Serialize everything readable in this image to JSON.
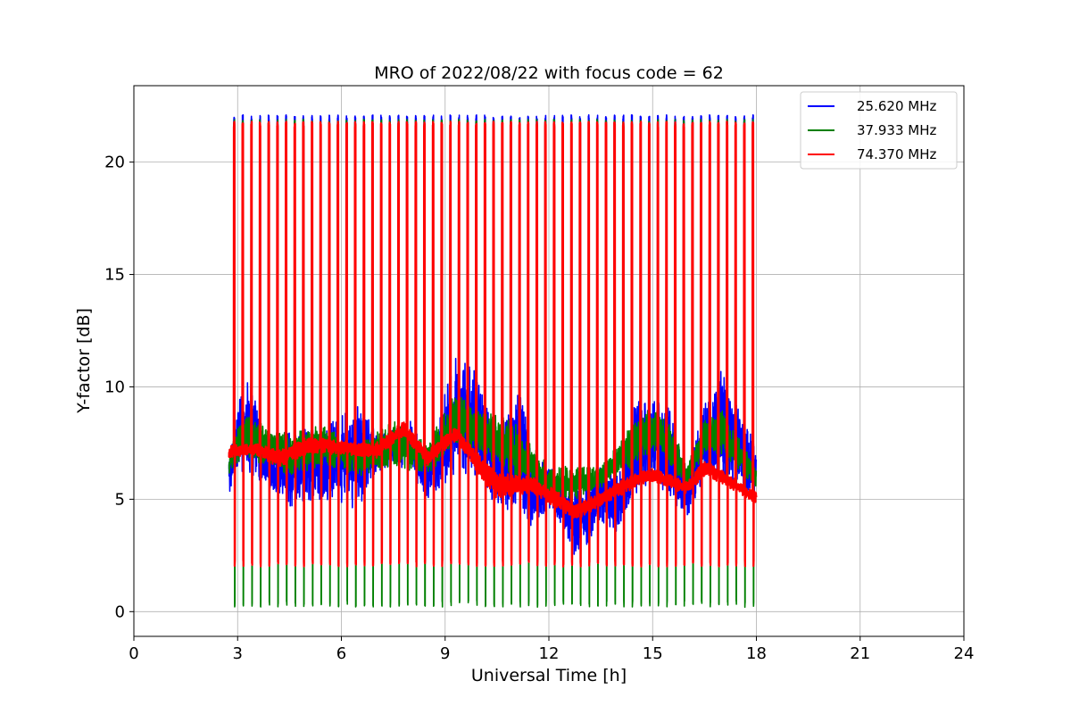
{
  "chart_data": {
    "type": "line",
    "title": "MRO of 2022/08/22 with focus code = 62",
    "xlabel": "Universal Time [h]",
    "ylabel": "Y-factor [dB]",
    "xlim": [
      0,
      24
    ],
    "ylim": [
      -1.1,
      23.4
    ],
    "xticks": [
      0,
      3,
      6,
      9,
      12,
      15,
      18,
      21,
      24
    ],
    "yticks": [
      0,
      5,
      10,
      15,
      20
    ],
    "grid": true,
    "legend_position": "top-right",
    "time_range_h": [
      2.75,
      18.0
    ],
    "calibration_spike_interval_h": 0.25,
    "series": [
      {
        "name": "25.620 MHz",
        "color": "#0000ff",
        "spike_peak": 22.1,
        "envelope_keyframes": [
          {
            "x": 2.75,
            "low": 5.0,
            "high": 7.0
          },
          {
            "x": 3.0,
            "low": 6.0,
            "high": 9.5
          },
          {
            "x": 3.4,
            "low": 5.8,
            "high": 10.6
          },
          {
            "x": 3.8,
            "low": 5.5,
            "high": 7.5
          },
          {
            "x": 4.5,
            "low": 4.6,
            "high": 8.2
          },
          {
            "x": 5.5,
            "low": 5.0,
            "high": 8.2
          },
          {
            "x": 6.5,
            "low": 4.5,
            "high": 9.5
          },
          {
            "x": 7.0,
            "low": 6.2,
            "high": 8.0
          },
          {
            "x": 7.5,
            "low": 6.5,
            "high": 8.2
          },
          {
            "x": 8.0,
            "low": 6.0,
            "high": 8.5
          },
          {
            "x": 8.5,
            "low": 5.0,
            "high": 7.0
          },
          {
            "x": 9.3,
            "low": 6.0,
            "high": 11.7
          },
          {
            "x": 10.0,
            "low": 6.0,
            "high": 10.5
          },
          {
            "x": 10.5,
            "low": 4.5,
            "high": 8.0
          },
          {
            "x": 11.2,
            "low": 4.5,
            "high": 10.0
          },
          {
            "x": 11.5,
            "low": 3.5,
            "high": 7.0
          },
          {
            "x": 12.0,
            "low": 4.5,
            "high": 6.5
          },
          {
            "x": 12.8,
            "low": 2.2,
            "high": 5.5
          },
          {
            "x": 13.5,
            "low": 4.0,
            "high": 6.5
          },
          {
            "x": 14.0,
            "low": 3.5,
            "high": 6.0
          },
          {
            "x": 14.5,
            "low": 5.0,
            "high": 9.5
          },
          {
            "x": 15.0,
            "low": 6.0,
            "high": 9.6
          },
          {
            "x": 15.5,
            "low": 5.0,
            "high": 9.0
          },
          {
            "x": 16.0,
            "low": 4.0,
            "high": 6.0
          },
          {
            "x": 16.5,
            "low": 6.0,
            "high": 9.5
          },
          {
            "x": 17.0,
            "low": 6.0,
            "high": 10.8
          },
          {
            "x": 17.5,
            "low": 5.5,
            "high": 9.0
          },
          {
            "x": 18.0,
            "low": 4.8,
            "high": 7.5
          }
        ]
      },
      {
        "name": "37.933 MHz",
        "color": "#008000",
        "spike_peak": 21.9,
        "dip_low": 0.2,
        "envelope_keyframes": [
          {
            "x": 2.75,
            "low": 6.0,
            "high": 7.2
          },
          {
            "x": 3.2,
            "low": 7.0,
            "high": 9.0
          },
          {
            "x": 3.6,
            "low": 6.5,
            "high": 8.5
          },
          {
            "x": 4.5,
            "low": 6.0,
            "high": 8.0
          },
          {
            "x": 5.5,
            "low": 6.5,
            "high": 8.3
          },
          {
            "x": 6.5,
            "low": 6.0,
            "high": 7.5
          },
          {
            "x": 7.5,
            "low": 6.5,
            "high": 8.5
          },
          {
            "x": 8.5,
            "low": 6.0,
            "high": 7.5
          },
          {
            "x": 9.3,
            "low": 7.5,
            "high": 9.8
          },
          {
            "x": 10.0,
            "low": 7.0,
            "high": 9.0
          },
          {
            "x": 11.0,
            "low": 6.0,
            "high": 8.5
          },
          {
            "x": 12.0,
            "low": 5.0,
            "high": 6.5
          },
          {
            "x": 12.8,
            "low": 5.0,
            "high": 6.5
          },
          {
            "x": 13.5,
            "low": 5.5,
            "high": 6.5
          },
          {
            "x": 14.5,
            "low": 6.5,
            "high": 8.5
          },
          {
            "x": 15.0,
            "low": 7.0,
            "high": 9.2
          },
          {
            "x": 15.5,
            "low": 6.5,
            "high": 8.5
          },
          {
            "x": 16.0,
            "low": 5.5,
            "high": 6.5
          },
          {
            "x": 16.5,
            "low": 7.0,
            "high": 8.5
          },
          {
            "x": 17.0,
            "low": 7.0,
            "high": 9.0
          },
          {
            "x": 18.0,
            "low": 5.5,
            "high": 6.5
          }
        ]
      },
      {
        "name": "74.370 MHz",
        "color": "#ff0000",
        "spike_peak": 21.8,
        "dip_low": 2.0,
        "envelope_keyframes": [
          {
            "x": 2.75,
            "low": 6.8,
            "high": 7.4
          },
          {
            "x": 3.5,
            "low": 7.0,
            "high": 7.5
          },
          {
            "x": 4.2,
            "low": 6.4,
            "high": 7.2
          },
          {
            "x": 5.0,
            "low": 7.0,
            "high": 7.8
          },
          {
            "x": 6.0,
            "low": 7.0,
            "high": 7.6
          },
          {
            "x": 7.0,
            "low": 6.8,
            "high": 7.5
          },
          {
            "x": 7.8,
            "low": 7.8,
            "high": 8.5
          },
          {
            "x": 8.5,
            "low": 6.5,
            "high": 7.2
          },
          {
            "x": 9.3,
            "low": 7.6,
            "high": 8.2
          },
          {
            "x": 10.0,
            "low": 6.0,
            "high": 7.0
          },
          {
            "x": 10.5,
            "low": 5.0,
            "high": 6.2
          },
          {
            "x": 11.5,
            "low": 5.3,
            "high": 6.0
          },
          {
            "x": 12.0,
            "low": 4.8,
            "high": 5.6
          },
          {
            "x": 12.8,
            "low": 4.1,
            "high": 4.8
          },
          {
            "x": 13.5,
            "low": 4.7,
            "high": 5.3
          },
          {
            "x": 14.5,
            "low": 5.5,
            "high": 6.2
          },
          {
            "x": 15.0,
            "low": 5.8,
            "high": 6.4
          },
          {
            "x": 16.0,
            "low": 5.2,
            "high": 5.8
          },
          {
            "x": 16.5,
            "low": 6.0,
            "high": 6.8
          },
          {
            "x": 17.0,
            "low": 5.7,
            "high": 6.3
          },
          {
            "x": 18.0,
            "low": 4.8,
            "high": 5.3
          }
        ]
      }
    ]
  }
}
